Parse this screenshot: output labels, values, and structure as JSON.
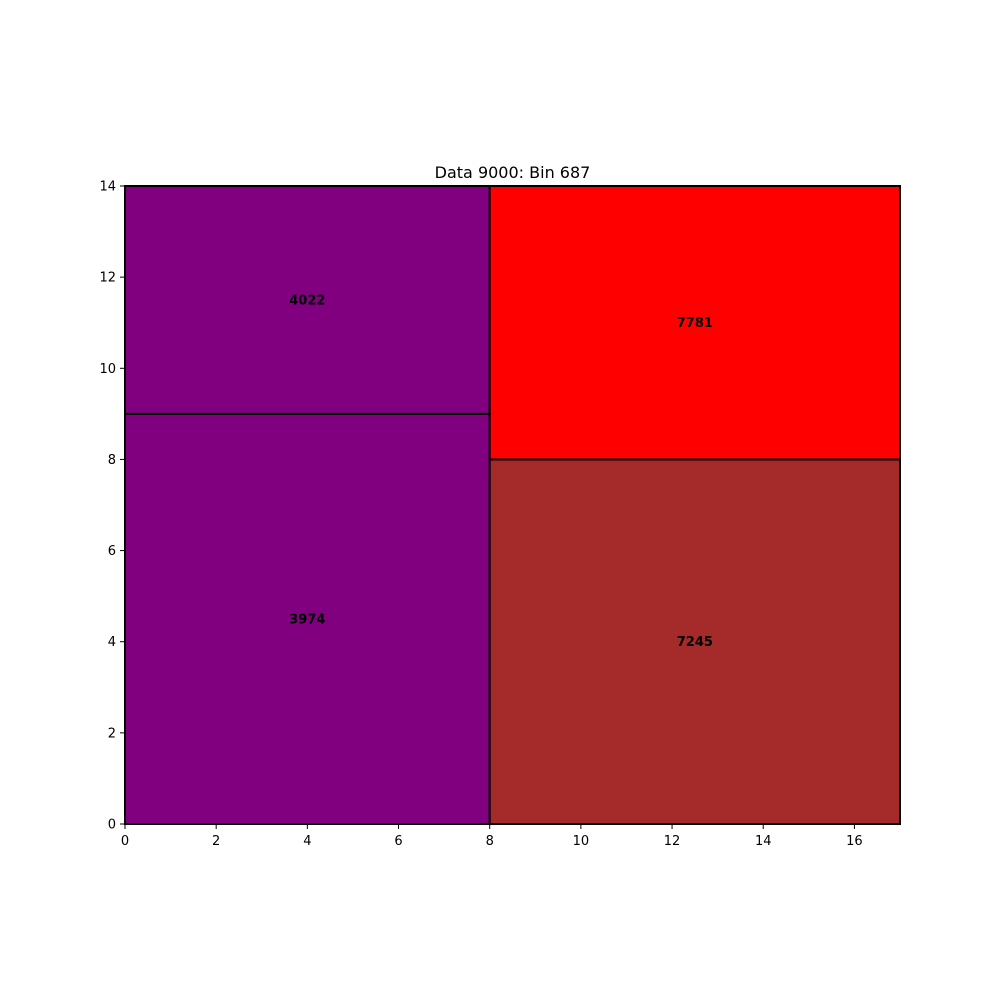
{
  "chart_data": {
    "type": "treemap",
    "title": "Data 9000: Bin 687",
    "xlabel": "",
    "ylabel": "",
    "xlim": [
      0,
      17
    ],
    "ylim": [
      0,
      14
    ],
    "x_ticks": [
      0,
      2,
      4,
      6,
      8,
      10,
      12,
      14,
      16
    ],
    "y_ticks": [
      0,
      2,
      4,
      6,
      8,
      10,
      12,
      14
    ],
    "grid": false,
    "rectangles": [
      {
        "label": "3974",
        "value": 3974,
        "x0": 0,
        "x1": 8,
        "y0": 0,
        "y1": 9,
        "color": "#800080"
      },
      {
        "label": "4022",
        "value": 4022,
        "x0": 0,
        "x1": 8,
        "y0": 9,
        "y1": 14,
        "color": "#800080"
      },
      {
        "label": "7245",
        "value": 7245,
        "x0": 8,
        "x1": 17,
        "y0": 0,
        "y1": 8,
        "color": "#a52a2a"
      },
      {
        "label": "7781",
        "value": 7781,
        "x0": 8,
        "x1": 17,
        "y0": 8,
        "y1": 14,
        "color": "#ff0000"
      }
    ]
  }
}
